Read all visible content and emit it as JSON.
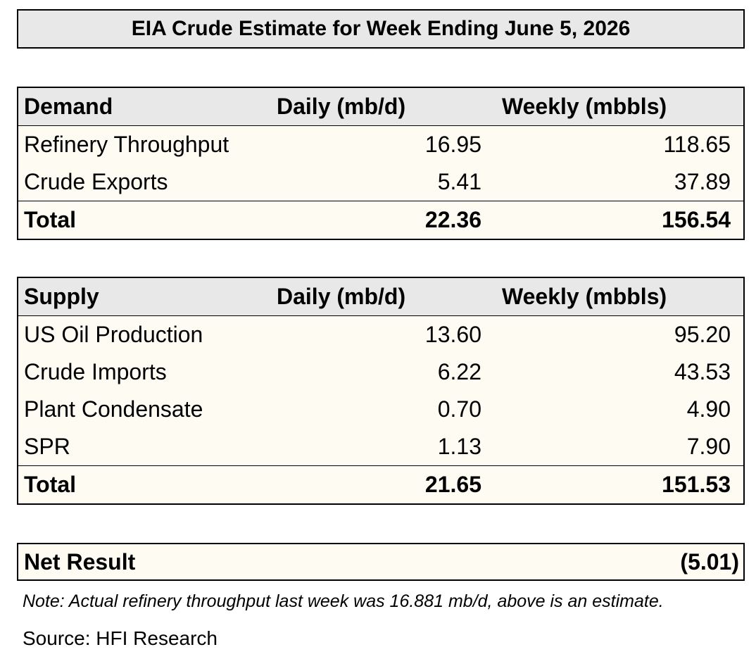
{
  "title": "EIA Crude Estimate for Week Ending June 5, 2026",
  "demand": {
    "header": {
      "label": "Demand",
      "daily": "Daily (mb/d)",
      "weekly": "Weekly (mbbls)"
    },
    "rows": [
      {
        "label": "Refinery Throughput",
        "daily": "16.95",
        "weekly": "118.65"
      },
      {
        "label": "Crude Exports",
        "daily": "5.41",
        "weekly": "37.89"
      }
    ],
    "total": {
      "label": "Total",
      "daily": "22.36",
      "weekly": "156.54"
    }
  },
  "supply": {
    "header": {
      "label": "Supply",
      "daily": "Daily (mb/d)",
      "weekly": "Weekly (mbbls)"
    },
    "rows": [
      {
        "label": "US Oil Production",
        "daily": "13.60",
        "weekly": "95.20"
      },
      {
        "label": "Crude Imports",
        "daily": "6.22",
        "weekly": "43.53"
      },
      {
        "label": "Plant Condensate",
        "daily": "0.70",
        "weekly": "4.90"
      },
      {
        "label": "SPR",
        "daily": "1.13",
        "weekly": "7.90"
      }
    ],
    "total": {
      "label": "Total",
      "daily": "21.65",
      "weekly": "151.53"
    }
  },
  "net_result": {
    "label": "Net Result",
    "value": "(5.01)"
  },
  "note": "Note: Actual refinery throughput last week was 16.881 mb/d, above is an estimate.",
  "source": "Source: HFI Research"
}
